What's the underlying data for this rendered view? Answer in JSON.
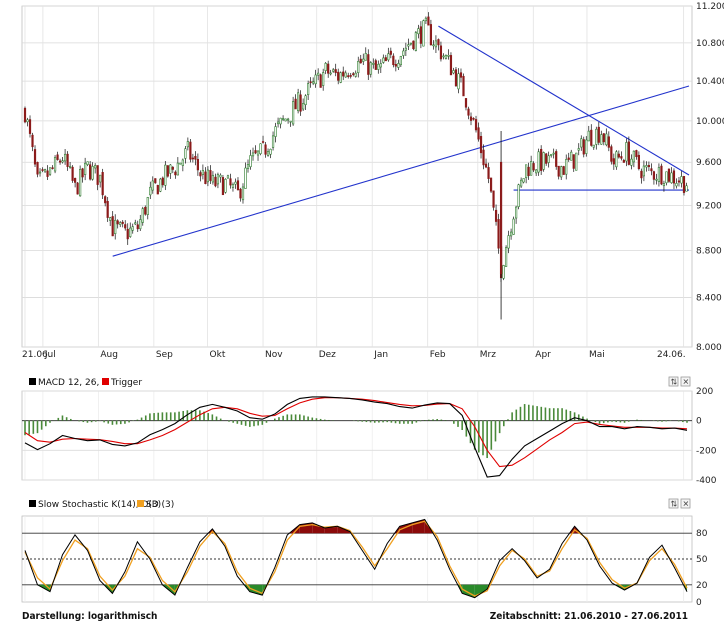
{
  "chart_data": [
    {
      "type": "candlestick",
      "title": "",
      "scale": "logarithmic",
      "yticks": [
        "11.200",
        "10.800",
        "10.400",
        "10.000",
        "9.600",
        "9.200",
        "8.800",
        "8.400",
        "8.000"
      ],
      "ylim": [
        8000,
        11200
      ],
      "xticks": [
        "21.06.",
        "Jul",
        "Aug",
        "Sep",
        "Okt",
        "Nov",
        "Dez",
        "Jan",
        "Feb",
        "Mrz",
        "Apr",
        "Mai",
        "24.06."
      ],
      "grid": true,
      "close_series": {
        "x": [
          "2010-06-21",
          "2010-06-28",
          "2010-07-05",
          "2010-07-12",
          "2010-07-19",
          "2010-07-26",
          "2010-08-02",
          "2010-08-09",
          "2010-08-16",
          "2010-08-23",
          "2010-08-30",
          "2010-09-06",
          "2010-09-13",
          "2010-09-20",
          "2010-09-27",
          "2010-10-04",
          "2010-10-11",
          "2010-10-18",
          "2010-10-25",
          "2010-11-01",
          "2010-11-08",
          "2010-11-15",
          "2010-11-22",
          "2010-11-29",
          "2010-12-06",
          "2010-12-13",
          "2010-12-20",
          "2010-12-27",
          "2011-01-03",
          "2011-01-10",
          "2011-01-17",
          "2011-01-24",
          "2011-01-31",
          "2011-02-07",
          "2011-02-14",
          "2011-02-21",
          "2011-02-28",
          "2011-03-07",
          "2011-03-14",
          "2011-03-21",
          "2011-03-28",
          "2011-04-04",
          "2011-04-11",
          "2011-04-18",
          "2011-04-25",
          "2011-05-02",
          "2011-05-09",
          "2011-05-16",
          "2011-05-23",
          "2011-05-30",
          "2011-06-06",
          "2011-06-13",
          "2011-06-20",
          "2011-06-27"
        ],
        "y": [
          10100,
          9400,
          9500,
          9650,
          9350,
          9550,
          9450,
          9000,
          8950,
          9000,
          9300,
          9450,
          9550,
          9700,
          9500,
          9400,
          9400,
          9300,
          9600,
          9700,
          9900,
          10050,
          10200,
          10350,
          10500,
          10450,
          10550,
          10600,
          10500,
          10600,
          10700,
          10850,
          10950,
          10750,
          10550,
          10300,
          9900,
          9450,
          8650,
          9150,
          9550,
          9600,
          9600,
          9550,
          9650,
          9850,
          9900,
          9600,
          9700,
          9550,
          9500,
          9500,
          9450,
          9400
        ]
      },
      "trendlines": [
        {
          "from": [
            "2010-08-09",
            8750
          ],
          "to": [
            "2011-06-27",
            10350
          ]
        },
        {
          "from": [
            "2011-02-07",
            10980
          ],
          "to": [
            "2011-06-27",
            9480
          ]
        },
        {
          "from": [
            "2011-03-21",
            9340
          ],
          "to": [
            "2011-06-27",
            9340
          ]
        }
      ],
      "colors": {
        "up": "#ffffff",
        "down": "#8b1a1a",
        "wick": "#111111",
        "trendline": "#2233cc"
      }
    },
    {
      "type": "line",
      "title": "MACD 12, 26, 9",
      "series_labels": [
        "MACD 12, 26, 9",
        "Trigger"
      ],
      "yticks": [
        "200",
        "0",
        "-200",
        "-400"
      ],
      "ylim": [
        -400,
        200
      ],
      "macd": [
        -150,
        -195,
        -155,
        -100,
        -120,
        -135,
        -130,
        -160,
        -170,
        -150,
        -95,
        -60,
        -20,
        40,
        90,
        110,
        90,
        65,
        20,
        10,
        45,
        110,
        150,
        160,
        160,
        155,
        150,
        140,
        125,
        115,
        95,
        85,
        105,
        120,
        115,
        35,
        -180,
        -380,
        -370,
        -260,
        -170,
        -120,
        -70,
        -20,
        20,
        0,
        -40,
        -40,
        -55,
        -40,
        -45,
        -55,
        -50,
        -65
      ],
      "trigger": [
        -80,
        -135,
        -145,
        -125,
        -120,
        -125,
        -128,
        -140,
        -155,
        -155,
        -130,
        -100,
        -60,
        -10,
        40,
        80,
        90,
        80,
        50,
        30,
        35,
        80,
        120,
        145,
        155,
        155,
        150,
        145,
        135,
        122,
        110,
        100,
        102,
        112,
        115,
        80,
        -40,
        -200,
        -310,
        -300,
        -250,
        -190,
        -130,
        -80,
        -20,
        -10,
        -25,
        -35,
        -45,
        -45,
        -45,
        -50,
        -50,
        -55
      ],
      "colors": {
        "macd": "#000000",
        "trigger": "#e00000",
        "histogram": "#4a8a3a"
      }
    },
    {
      "type": "line",
      "title": "Slow Stochastic K(14), D(3)",
      "series_labels": [
        "Slow Stochastic K(14), D(3)",
        "SD (3)"
      ],
      "yticks": [
        "80",
        "50",
        "20",
        "0"
      ],
      "ylim": [
        0,
        100
      ],
      "levels": [
        80,
        50,
        20
      ],
      "k": [
        60,
        20,
        12,
        55,
        78,
        60,
        25,
        10,
        35,
        70,
        50,
        20,
        8,
        40,
        70,
        85,
        65,
        30,
        12,
        8,
        40,
        78,
        90,
        92,
        86,
        88,
        82,
        60,
        38,
        68,
        88,
        92,
        96,
        72,
        38,
        10,
        5,
        15,
        48,
        62,
        48,
        28,
        38,
        68,
        88,
        72,
        42,
        22,
        14,
        22,
        52,
        66,
        40,
        12
      ],
      "d": [
        58,
        28,
        15,
        48,
        72,
        62,
        30,
        14,
        30,
        62,
        52,
        25,
        12,
        35,
        65,
        82,
        68,
        35,
        16,
        10,
        35,
        72,
        88,
        90,
        87,
        88,
        83,
        64,
        42,
        62,
        84,
        90,
        94,
        76,
        42,
        15,
        7,
        13,
        42,
        60,
        50,
        30,
        36,
        62,
        84,
        74,
        46,
        26,
        16,
        22,
        48,
        62,
        44,
        16
      ],
      "colors": {
        "k": "#000000",
        "d": "#f0a020",
        "overbought": "#8b0a0a",
        "oversold": "#2a8a2a"
      }
    }
  ],
  "panel2": {
    "legend_main": "MACD 12, 26, 9",
    "legend_trigger": "Trigger"
  },
  "panel3": {
    "legend_main": "Slow Stochastic K(14), D(3)",
    "legend_trigger": "SD (3)"
  },
  "footer": {
    "left": "Darstellung: logarithmisch",
    "right": "Zeitabschnitt: 21.06.2010 - 27.06.2011"
  }
}
